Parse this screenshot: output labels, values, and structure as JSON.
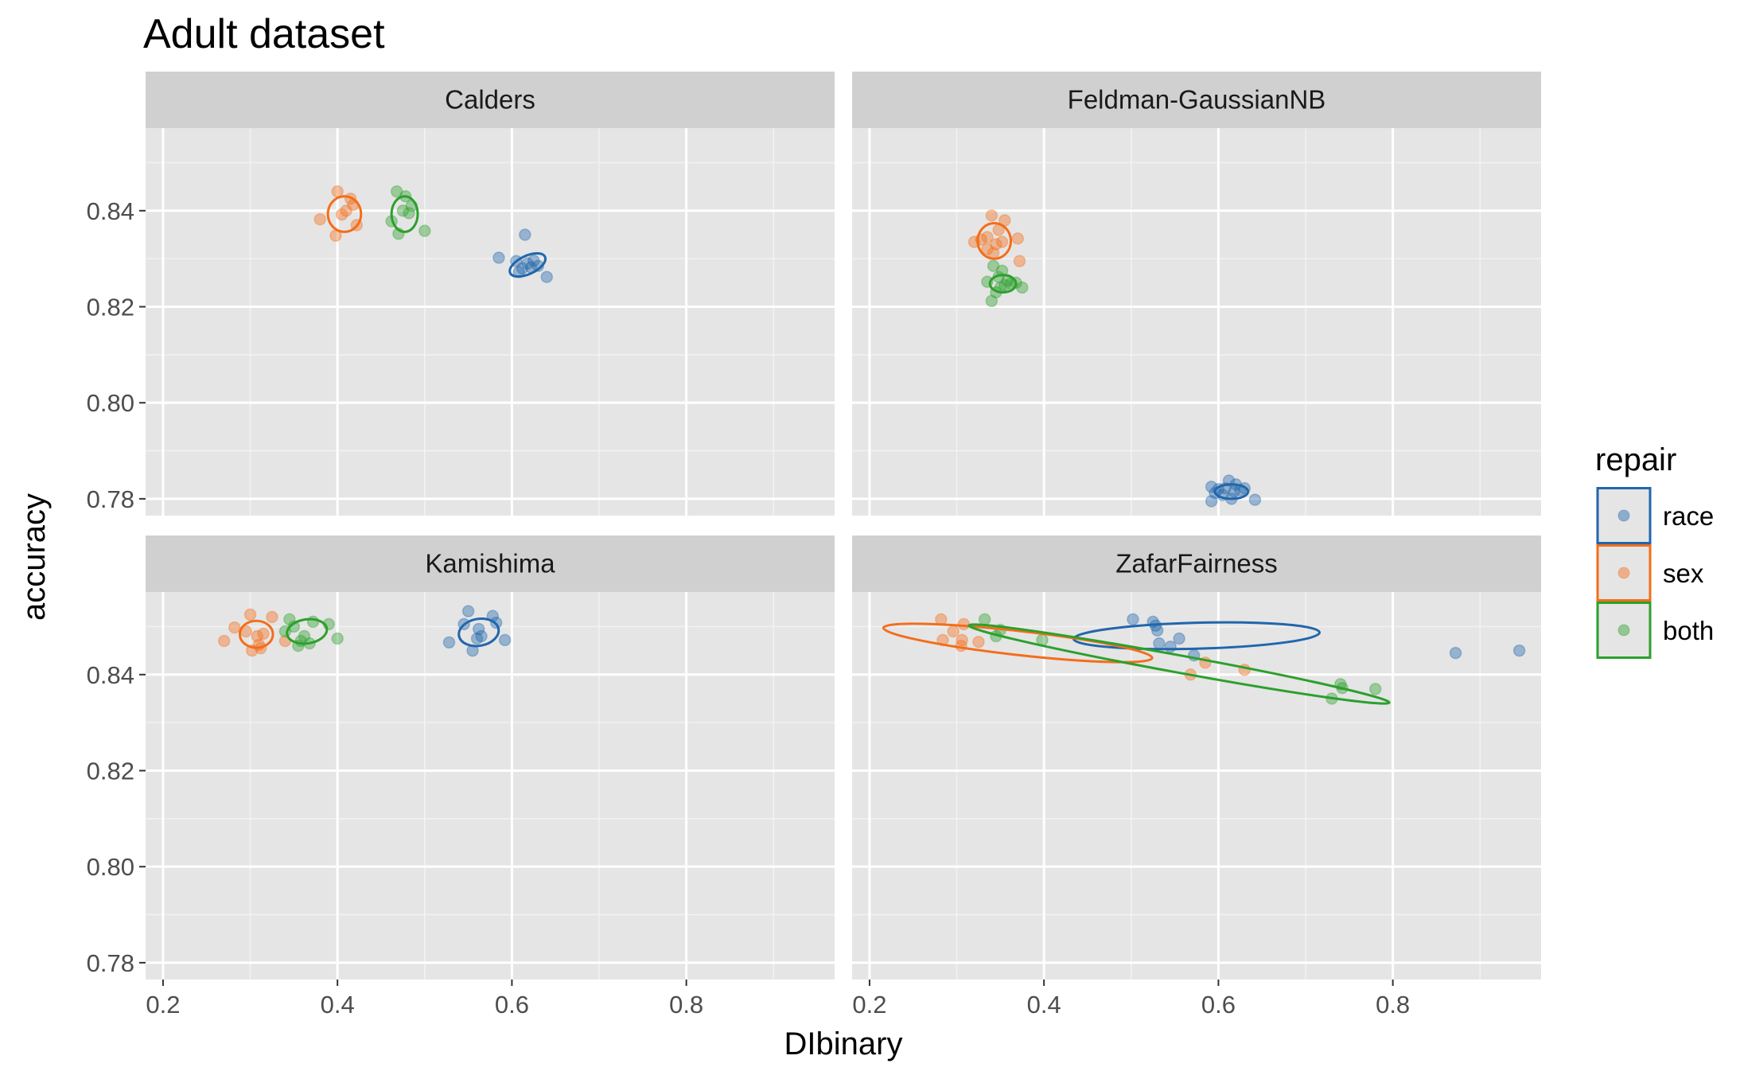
{
  "chart_data": {
    "type": "scatter",
    "title": "Adult dataset",
    "xlabel": "DIbinary",
    "ylabel": "accuracy",
    "xlim": [
      0.18,
      0.97
    ],
    "ylim": [
      0.7765,
      0.8572
    ],
    "x_ticks": [
      "0.2",
      "0.4",
      "0.6",
      "0.8"
    ],
    "y_ticks": [
      "0.78",
      "0.80",
      "0.82",
      "0.84"
    ],
    "grid": true,
    "legend": {
      "title": "repair",
      "position": "right"
    },
    "colors": {
      "race": "#2166ac",
      "sex": "#f46d1a",
      "both": "#2ca02c",
      "panel_bg": "#e5e5e5",
      "strip_bg": "#d0d0d0"
    },
    "series_names": [
      "race",
      "sex",
      "both"
    ],
    "panels": [
      {
        "name": "Calders",
        "series": [
          {
            "name": "race",
            "points": [
              [
                0.585,
                0.8302
              ],
              [
                0.605,
                0.8295
              ],
              [
                0.615,
                0.835
              ],
              [
                0.608,
                0.8272
              ],
              [
                0.618,
                0.829
              ],
              [
                0.622,
                0.8282
              ],
              [
                0.625,
                0.8296
              ],
              [
                0.63,
                0.8285
              ],
              [
                0.64,
                0.8262
              ],
              [
                0.612,
                0.828
              ]
            ],
            "ellipse": {
              "cx": 0.618,
              "cy": 0.8287,
              "rx": 0.022,
              "ry": 0.0019,
              "angle": -25
            }
          },
          {
            "name": "sex",
            "points": [
              [
                0.38,
                0.8382
              ],
              [
                0.398,
                0.8348
              ],
              [
                0.4,
                0.844
              ],
              [
                0.405,
                0.8392
              ],
              [
                0.41,
                0.84
              ],
              [
                0.415,
                0.8425
              ],
              [
                0.418,
                0.8412
              ],
              [
                0.422,
                0.837
              ]
            ],
            "ellipse": {
              "cx": 0.408,
              "cy": 0.8393,
              "rx": 0.019,
              "ry": 0.0037,
              "angle": 0
            }
          },
          {
            "name": "both",
            "points": [
              [
                0.462,
                0.8378
              ],
              [
                0.468,
                0.844
              ],
              [
                0.47,
                0.8352
              ],
              [
                0.475,
                0.84
              ],
              [
                0.478,
                0.843
              ],
              [
                0.482,
                0.8395
              ],
              [
                0.485,
                0.841
              ],
              [
                0.5,
                0.8358
              ]
            ],
            "ellipse": {
              "cx": 0.477,
              "cy": 0.8393,
              "rx": 0.015,
              "ry": 0.0037,
              "angle": 0
            }
          }
        ]
      },
      {
        "name": "Feldman-GaussianNB",
        "series": [
          {
            "name": "race",
            "points": [
              [
                0.592,
                0.7825
              ],
              [
                0.596,
                0.7812
              ],
              [
                0.6,
                0.782
              ],
              [
                0.605,
                0.7808
              ],
              [
                0.608,
                0.7822
              ],
              [
                0.612,
                0.7838
              ],
              [
                0.615,
                0.78
              ],
              [
                0.618,
                0.7815
              ],
              [
                0.62,
                0.783
              ],
              [
                0.625,
                0.7818
              ],
              [
                0.63,
                0.7822
              ],
              [
                0.642,
                0.7798
              ],
              [
                0.592,
                0.7795
              ]
            ],
            "ellipse": {
              "cx": 0.615,
              "cy": 0.7815,
              "rx": 0.019,
              "ry": 0.0015,
              "angle": 0
            }
          },
          {
            "name": "sex",
            "points": [
              [
                0.32,
                0.8335
              ],
              [
                0.328,
                0.834
              ],
              [
                0.335,
                0.8345
              ],
              [
                0.34,
                0.839
              ],
              [
                0.342,
                0.8312
              ],
              [
                0.345,
                0.833
              ],
              [
                0.348,
                0.836
              ],
              [
                0.352,
                0.8335
              ],
              [
                0.355,
                0.838
              ],
              [
                0.37,
                0.8342
              ],
              [
                0.372,
                0.8295
              ],
              [
                0.335,
                0.832
              ]
            ],
            "ellipse": {
              "cx": 0.343,
              "cy": 0.8337,
              "rx": 0.019,
              "ry": 0.0037,
              "angle": 0
            }
          },
          {
            "name": "both",
            "points": [
              [
                0.335,
                0.8252
              ],
              [
                0.34,
                0.8212
              ],
              [
                0.342,
                0.8285
              ],
              [
                0.345,
                0.823
              ],
              [
                0.348,
                0.8262
              ],
              [
                0.35,
                0.824
              ],
              [
                0.352,
                0.8275
              ],
              [
                0.355,
                0.8245
              ],
              [
                0.358,
                0.8255
              ],
              [
                0.362,
                0.8248
              ],
              [
                0.368,
                0.825
              ],
              [
                0.375,
                0.824
              ]
            ],
            "ellipse": {
              "cx": 0.353,
              "cy": 0.8248,
              "rx": 0.015,
              "ry": 0.0018,
              "angle": 0
            }
          }
        ]
      },
      {
        "name": "Kamishima",
        "series": [
          {
            "name": "race",
            "points": [
              [
                0.528,
                0.8467
              ],
              [
                0.545,
                0.8505
              ],
              [
                0.55,
                0.8532
              ],
              [
                0.555,
                0.845
              ],
              [
                0.56,
                0.8475
              ],
              [
                0.562,
                0.8495
              ],
              [
                0.565,
                0.848
              ],
              [
                0.578,
                0.8522
              ],
              [
                0.582,
                0.8508
              ],
              [
                0.592,
                0.8472
              ]
            ],
            "ellipse": {
              "cx": 0.562,
              "cy": 0.8488,
              "rx": 0.023,
              "ry": 0.0028,
              "angle": -10
            }
          },
          {
            "name": "sex",
            "points": [
              [
                0.27,
                0.847
              ],
              [
                0.282,
                0.8498
              ],
              [
                0.295,
                0.849
              ],
              [
                0.3,
                0.8525
              ],
              [
                0.302,
                0.845
              ],
              [
                0.308,
                0.848
              ],
              [
                0.31,
                0.8462
              ],
              [
                0.312,
                0.8455
              ],
              [
                0.315,
                0.8485
              ],
              [
                0.325,
                0.852
              ],
              [
                0.34,
                0.847
              ]
            ],
            "ellipse": {
              "cx": 0.307,
              "cy": 0.8484,
              "rx": 0.019,
              "ry": 0.0028,
              "angle": 0
            }
          },
          {
            "name": "both",
            "points": [
              [
                0.34,
                0.849
              ],
              [
                0.345,
                0.8515
              ],
              [
                0.35,
                0.85
              ],
              [
                0.355,
                0.846
              ],
              [
                0.358,
                0.847
              ],
              [
                0.362,
                0.848
              ],
              [
                0.368,
                0.8465
              ],
              [
                0.372,
                0.851
              ],
              [
                0.39,
                0.8505
              ],
              [
                0.4,
                0.8475
              ]
            ],
            "ellipse": {
              "cx": 0.365,
              "cy": 0.849,
              "rx": 0.023,
              "ry": 0.0025,
              "angle": -8
            }
          }
        ]
      },
      {
        "name": "ZafarFairness",
        "series": [
          {
            "name": "race",
            "points": [
              [
                0.502,
                0.8515
              ],
              [
                0.525,
                0.851
              ],
              [
                0.528,
                0.8502
              ],
              [
                0.53,
                0.8492
              ],
              [
                0.532,
                0.8465
              ],
              [
                0.545,
                0.8458
              ],
              [
                0.555,
                0.8475
              ],
              [
                0.572,
                0.844
              ],
              [
                0.872,
                0.8445
              ],
              [
                0.945,
                0.845
              ]
            ],
            "ellipse": {
              "cx": 0.575,
              "cy": 0.8481,
              "rx": 0.141,
              "ry": 0.0027,
              "angle": -1.5
            }
          },
          {
            "name": "sex",
            "points": [
              [
                0.282,
                0.8515
              ],
              [
                0.284,
                0.8472
              ],
              [
                0.296,
                0.849
              ],
              [
                0.305,
                0.846
              ],
              [
                0.306,
                0.8472
              ],
              [
                0.308,
                0.8505
              ],
              [
                0.325,
                0.8468
              ],
              [
                0.568,
                0.84
              ],
              [
                0.585,
                0.8425
              ],
              [
                0.63,
                0.841
              ]
            ],
            "ellipse": {
              "cx": 0.37,
              "cy": 0.8466,
              "rx": 0.155,
              "ry": 0.0025,
              "angle": 6.4
            }
          },
          {
            "name": "both",
            "points": [
              [
                0.332,
                0.8515
              ],
              [
                0.345,
                0.848
              ],
              [
                0.35,
                0.8493
              ],
              [
                0.398,
                0.8472
              ],
              [
                0.73,
                0.835
              ],
              [
                0.74,
                0.838
              ],
              [
                0.742,
                0.8372
              ],
              [
                0.78,
                0.837
              ]
            ],
            "ellipse": {
              "cx": 0.555,
              "cy": 0.8422,
              "rx": 0.245,
              "ry": 0.0018,
              "angle": 10.4
            }
          }
        ]
      }
    ]
  }
}
